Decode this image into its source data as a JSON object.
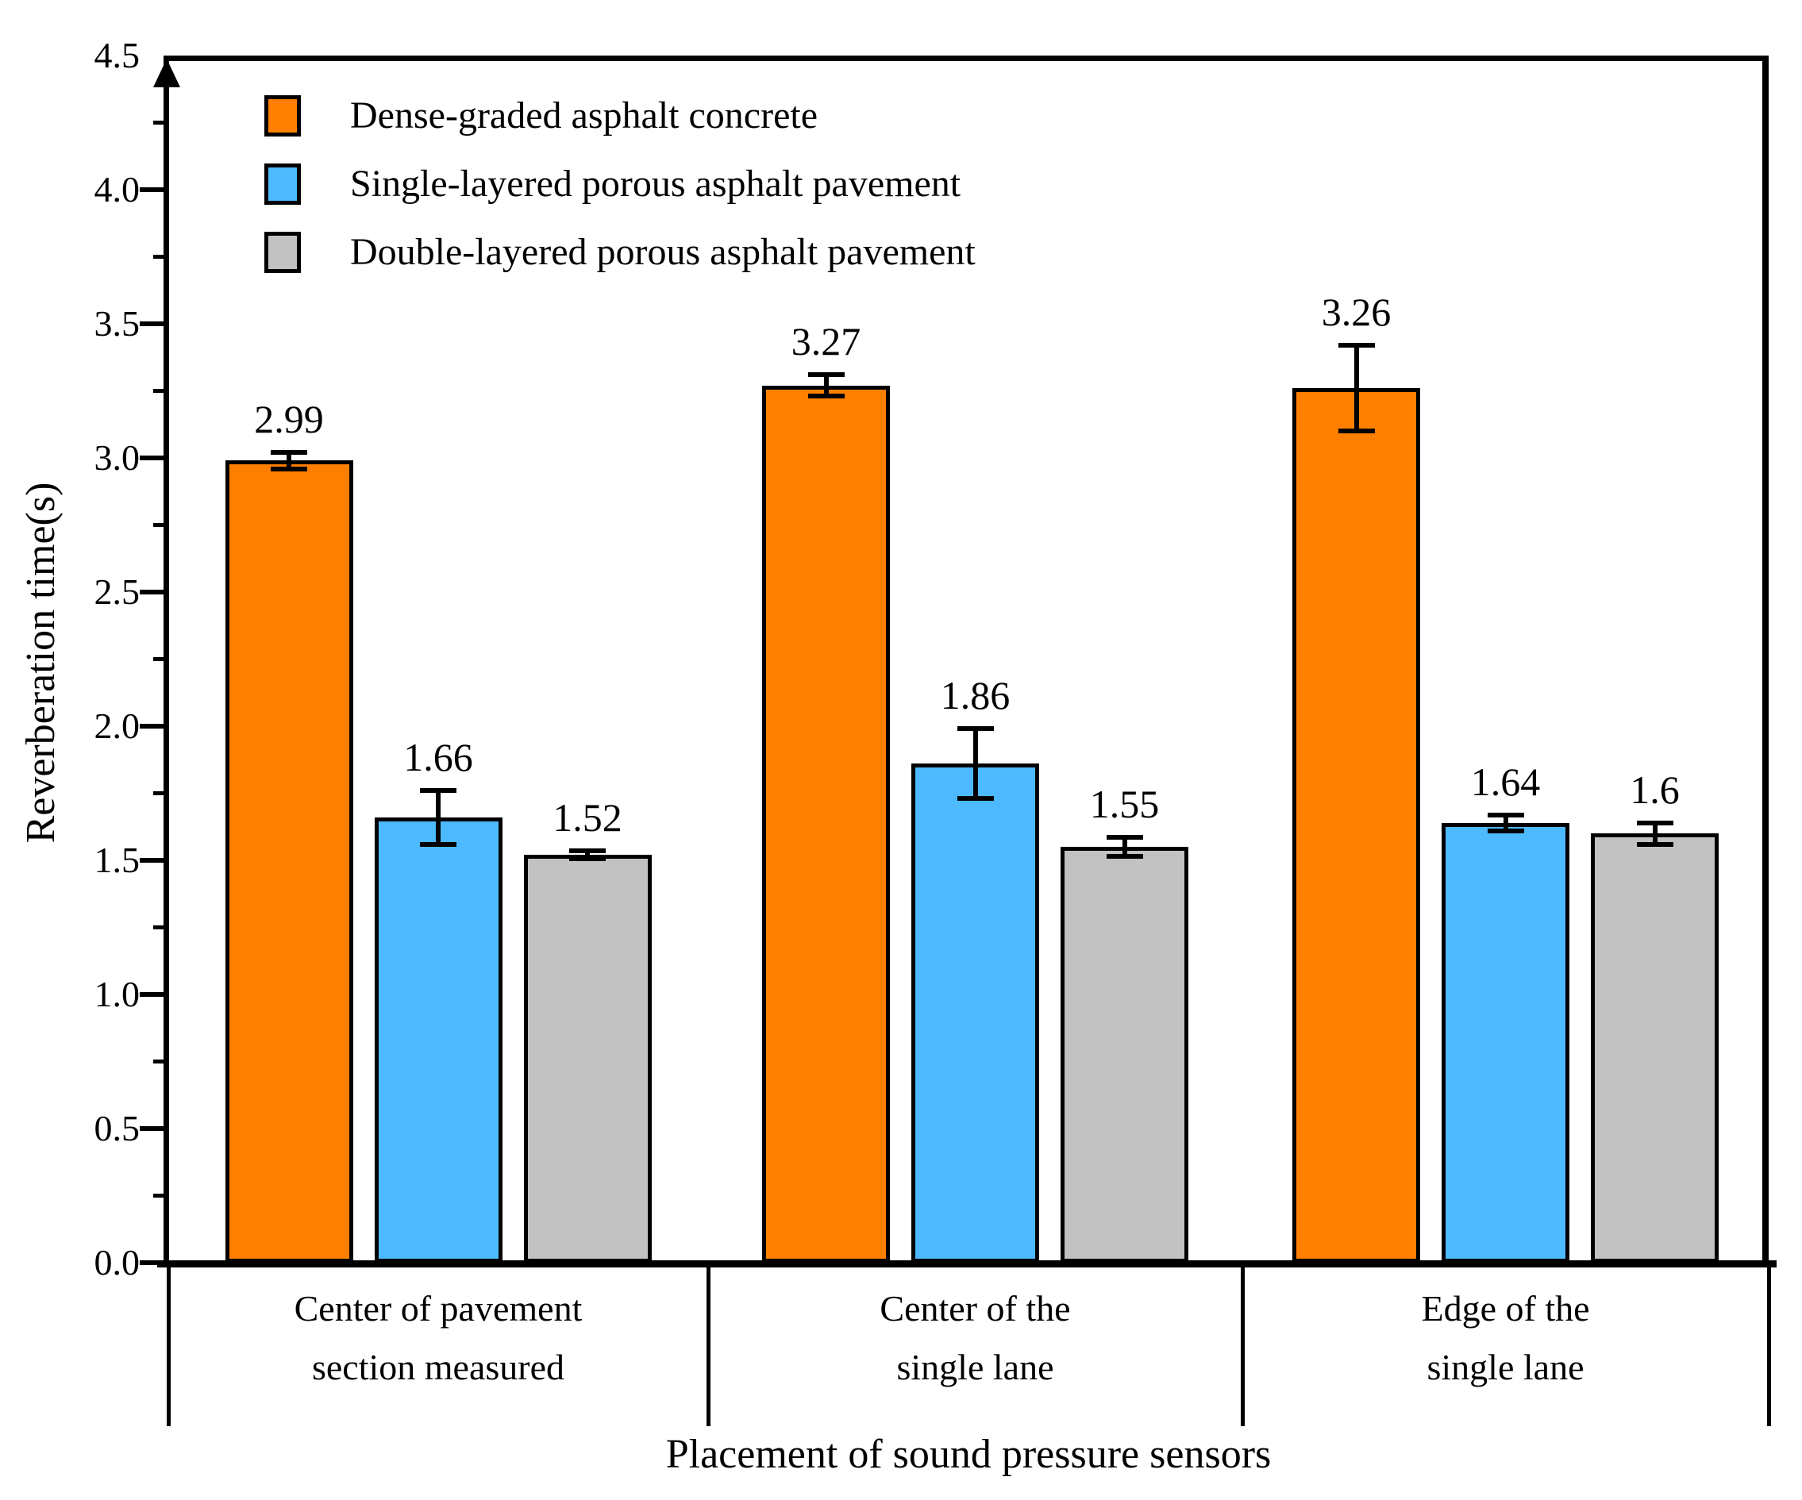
{
  "chart_data": {
    "type": "bar",
    "title": "",
    "xlabel": "Placement of sound pressure sensors",
    "ylabel": "Reverberation time(s)",
    "ylim": [
      0,
      4.5
    ],
    "ytick_step": 0.5,
    "minor_tick_step": 0.25,
    "ytick_labels": [
      "0.0",
      "0.5",
      "1.0",
      "1.5",
      "2.0",
      "2.5",
      "3.0",
      "3.5",
      "4.0",
      "4.5"
    ],
    "grid": false,
    "legend_position": "top-left",
    "categories": [
      {
        "line1": "Center of pavement",
        "line2": "section measured"
      },
      {
        "line1": "Center of the",
        "line2": "single lane"
      },
      {
        "line1": "Edge of the",
        "line2": "single lane"
      }
    ],
    "series": [
      {
        "name": "Dense-graded asphalt concrete",
        "color": "#FF8000",
        "values": [
          2.99,
          3.27,
          3.26
        ],
        "errors": [
          0.03,
          0.04,
          0.16
        ],
        "value_labels": [
          "2.99",
          "3.27",
          "3.26"
        ]
      },
      {
        "name": "Single-layered porous asphalt pavement",
        "color": "#4DB9FF",
        "values": [
          1.66,
          1.86,
          1.64
        ],
        "errors": [
          0.1,
          0.13,
          0.03
        ],
        "value_labels": [
          "1.66",
          "1.86",
          "1.64"
        ]
      },
      {
        "name": "Double-layered porous asphalt pavement",
        "color": "#C2C2C2",
        "values": [
          1.52,
          1.55,
          1.6
        ],
        "errors": [
          0.015,
          0.035,
          0.04
        ],
        "value_labels": [
          "1.52",
          "1.55",
          "1.6"
        ]
      }
    ],
    "icons": {
      "y_axis_arrow": "up-triangle"
    }
  }
}
